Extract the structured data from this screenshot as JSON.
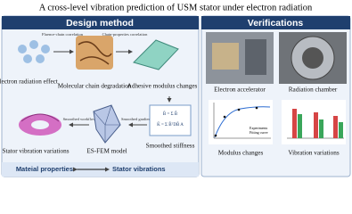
{
  "title": "A cross-level vibration prediction of USM stator under electron radiation",
  "design_method": {
    "header": "Design method",
    "nodes": [
      {
        "label": "Electron radiation effect"
      },
      {
        "label": "Molecular chain degradation"
      },
      {
        "label": "Adhesive modulus changes"
      },
      {
        "label": "Smoothed stiffness"
      },
      {
        "label": "ES-FEM model"
      },
      {
        "label": "Stator vibration variations"
      }
    ],
    "edges": [
      "Fluence-chain correlation",
      "Chain-properties correlation",
      "Smoothed gradient",
      "Smoothed workflow"
    ],
    "footer": {
      "left": "Mateial properties",
      "right": "Stator vibrations"
    }
  },
  "verifications": {
    "header": "Verifications",
    "items": [
      {
        "label": "Electron accelerator"
      },
      {
        "label": "Radiation chamber"
      },
      {
        "label": "Modulus changes"
      },
      {
        "label": "Vibration variations"
      }
    ],
    "chart_legend": [
      "Experiments",
      "Fitting curve"
    ]
  }
}
